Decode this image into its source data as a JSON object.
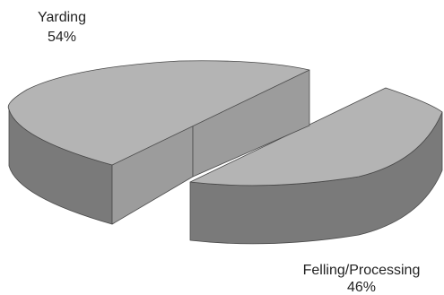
{
  "chart_data": {
    "type": "pie",
    "style": "3d-exploded",
    "slices": [
      {
        "label": "Yarding",
        "value": 54,
        "value_label": "54%"
      },
      {
        "label": "Felling/Processing",
        "value": 46,
        "value_label": "46%"
      }
    ],
    "colors": {
      "top": "#b4b4b4",
      "side": "#7a7a7a",
      "cut_face": "#9c9c9c",
      "edge": "#4a4a4a"
    }
  }
}
